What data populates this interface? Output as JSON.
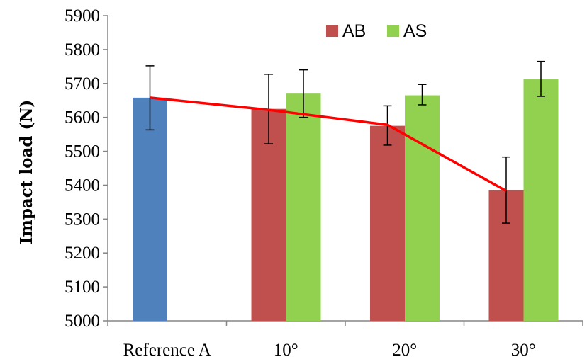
{
  "chart_data": {
    "type": "bar",
    "title": "",
    "xlabel": "",
    "ylabel": "Impact load (N)",
    "ylim": [
      5000,
      5900
    ],
    "yticks": [
      5000,
      5100,
      5200,
      5300,
      5400,
      5500,
      5600,
      5700,
      5800,
      5900
    ],
    "categories": [
      "Reference A",
      "10°",
      "20°",
      "30°"
    ],
    "reference": {
      "category": "Reference A",
      "value": 5658,
      "error_low": 5563,
      "error_high": 5752,
      "color": "#4f81bd"
    },
    "series": [
      {
        "name": "AB",
        "color": "#c0504d",
        "values": [
          null,
          5625,
          5575,
          5385
        ],
        "error_low": [
          null,
          5522,
          5518,
          5288
        ],
        "error_high": [
          null,
          5727,
          5634,
          5483
        ]
      },
      {
        "name": "AS",
        "color": "#92d050",
        "values": [
          null,
          5670,
          5665,
          5712
        ],
        "error_low": [
          null,
          5600,
          5637,
          5662
        ],
        "error_high": [
          null,
          5740,
          5697,
          5765
        ]
      }
    ],
    "trend_line": {
      "color": "#ff0000",
      "values": [
        5658,
        5622,
        5578,
        5383
      ]
    },
    "grid": false,
    "legend": "top-center"
  }
}
